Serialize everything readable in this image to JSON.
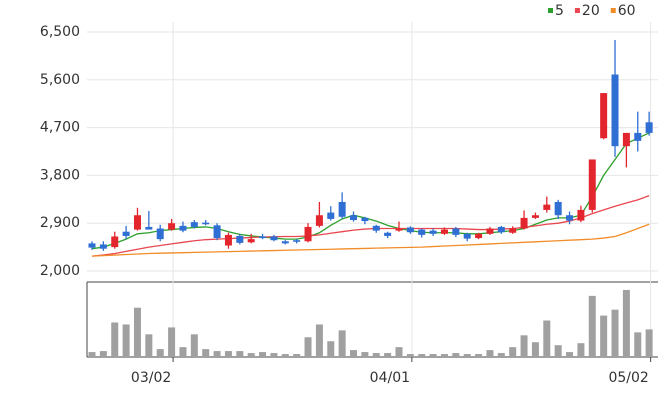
{
  "chart_data": [
    {
      "type": "candlestick",
      "categories": [
        null,
        null,
        null,
        null,
        null,
        null,
        null,
        "03/02",
        null,
        null,
        null,
        null,
        null,
        null,
        null,
        null,
        null,
        null,
        null,
        null,
        null,
        null,
        null,
        null,
        null,
        null,
        null,
        null,
        "04/01",
        null,
        null,
        null,
        null,
        null,
        null,
        null,
        null,
        null,
        null,
        null,
        null,
        null,
        null,
        null,
        null,
        null,
        null,
        null,
        null,
        "05/02"
      ],
      "open": [
        2520,
        2500,
        2450,
        2740,
        2780,
        2830,
        2800,
        2780,
        2850,
        2920,
        2910,
        2860,
        2480,
        2660,
        2540,
        2650,
        2650,
        2560,
        2580,
        2560,
        2850,
        3100,
        3300,
        3050,
        3000,
        2850,
        2720,
        2760,
        2820,
        2780,
        2760,
        2700,
        2800,
        2700,
        2620,
        2700,
        2830,
        2720,
        2800,
        3000,
        3150,
        3300,
        3050,
        2950,
        3150,
        4500,
        5700,
        4350,
        4600,
        4800
      ],
      "high": [
        2560,
        2560,
        2740,
        2850,
        3190,
        3130,
        2870,
        2980,
        2930,
        2960,
        2960,
        2900,
        2720,
        2700,
        2700,
        2700,
        2680,
        2580,
        2600,
        2900,
        3300,
        3220,
        3480,
        3120,
        3020,
        2870,
        2740,
        2930,
        2840,
        2800,
        2800,
        2820,
        2830,
        2720,
        2720,
        2830,
        2850,
        2840,
        3140,
        3100,
        3400,
        3340,
        3120,
        3230,
        4100,
        5350,
        6350,
        4600,
        5000,
        5000
      ],
      "low": [
        2400,
        2380,
        2420,
        2600,
        2760,
        2780,
        2560,
        2760,
        2730,
        2800,
        2860,
        2580,
        2420,
        2500,
        2520,
        2600,
        2560,
        2500,
        2520,
        2540,
        2820,
        2950,
        2980,
        2930,
        2880,
        2720,
        2620,
        2740,
        2700,
        2630,
        2660,
        2680,
        2640,
        2560,
        2600,
        2680,
        2700,
        2700,
        2780,
        2980,
        3100,
        2980,
        2880,
        2920,
        3100,
        4480,
        4150,
        3950,
        4250,
        4550
      ],
      "close": [
        2440,
        2420,
        2650,
        2660,
        3050,
        2780,
        2600,
        2900,
        2760,
        2830,
        2880,
        2620,
        2680,
        2530,
        2600,
        2620,
        2580,
        2520,
        2550,
        2830,
        3050,
        2980,
        3020,
        2960,
        2940,
        2760,
        2660,
        2800,
        2730,
        2680,
        2700,
        2780,
        2680,
        2610,
        2700,
        2800,
        2730,
        2800,
        3000,
        3050,
        3250,
        3050,
        2950,
        3150,
        4100,
        5350,
        4350,
        4600,
        4450,
        4600
      ],
      "up_color": "#e3262d",
      "down_color": "#2f6fd3",
      "series": [
        {
          "name": "5",
          "color": "#2ca02c",
          "values": [
            2420,
            2450,
            2520,
            2600,
            2700,
            2720,
            2760,
            2780,
            2800,
            2820,
            2830,
            2800,
            2740,
            2690,
            2660,
            2640,
            2620,
            2600,
            2600,
            2640,
            2720,
            2860,
            2980,
            3050,
            3000,
            2940,
            2860,
            2800,
            2760,
            2730,
            2720,
            2720,
            2720,
            2700,
            2700,
            2720,
            2740,
            2760,
            2800,
            2880,
            2960,
            3000,
            3000,
            3050,
            3400,
            3800,
            4100,
            4400,
            4500,
            4600
          ]
        },
        {
          "name": "20",
          "color": "#e8474f",
          "values": [
            2280,
            2300,
            2330,
            2370,
            2410,
            2450,
            2480,
            2510,
            2540,
            2570,
            2590,
            2600,
            2610,
            2620,
            2630,
            2640,
            2645,
            2650,
            2650,
            2660,
            2680,
            2710,
            2740,
            2770,
            2790,
            2800,
            2800,
            2800,
            2800,
            2800,
            2800,
            2800,
            2800,
            2790,
            2780,
            2780,
            2790,
            2800,
            2820,
            2850,
            2880,
            2900,
            2940,
            3000,
            3080,
            3150,
            3220,
            3280,
            3340,
            3420
          ]
        },
        {
          "name": "60",
          "color": "#f28c28",
          "values": [
            2280,
            2290,
            2300,
            2310,
            2320,
            2330,
            2335,
            2340,
            2345,
            2350,
            2355,
            2360,
            2365,
            2370,
            2375,
            2380,
            2385,
            2390,
            2395,
            2400,
            2405,
            2410,
            2415,
            2420,
            2425,
            2430,
            2435,
            2440,
            2445,
            2450,
            2460,
            2470,
            2480,
            2490,
            2500,
            2510,
            2520,
            2530,
            2540,
            2550,
            2560,
            2570,
            2580,
            2590,
            2600,
            2620,
            2650,
            2720,
            2800,
            2880
          ]
        }
      ],
      "ylim": [
        2000,
        6500
      ],
      "yticks": [
        {
          "value": 2000,
          "label": "2,000"
        },
        {
          "value": 2900,
          "label": "2,900"
        },
        {
          "value": 3800,
          "label": "3,800"
        },
        {
          "value": 4700,
          "label": "4,700"
        },
        {
          "value": 5600,
          "label": "5,600"
        },
        {
          "value": 6500,
          "label": "6,500"
        }
      ],
      "grid": true,
      "legend": "top-right"
    },
    {
      "type": "bar",
      "color": "#a0a0a0",
      "values": [
        5,
        6,
        35,
        33,
        50,
        23,
        8,
        30,
        10,
        23,
        8,
        6,
        6,
        6,
        4,
        5,
        4,
        3,
        3,
        20,
        33,
        16,
        27,
        7,
        5,
        4,
        4,
        10,
        3,
        3,
        3,
        3,
        4,
        3,
        3,
        7,
        4,
        10,
        22,
        15,
        37,
        12,
        5,
        14,
        62,
        42,
        48,
        68,
        25,
        28
      ],
      "ylim": [
        0,
        72
      ]
    }
  ]
}
